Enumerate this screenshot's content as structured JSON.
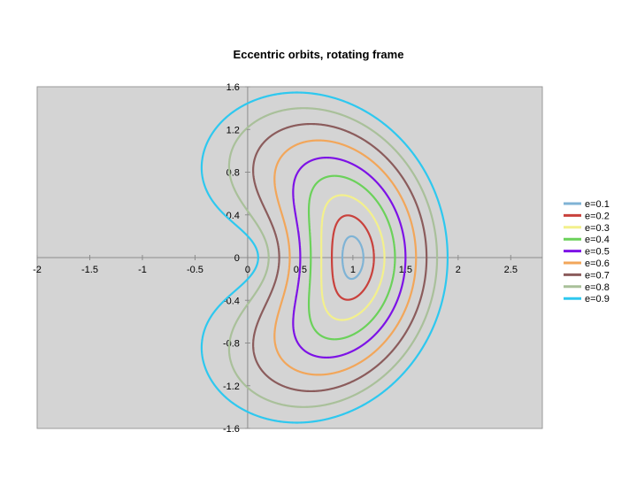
{
  "chart_data": {
    "type": "line",
    "title": "Eccentric orbits, rotating frame",
    "xlabel": "",
    "ylabel": "",
    "xlim": [
      -2,
      2.8
    ],
    "ylim": [
      -1.6,
      1.6
    ],
    "x_ticks": [
      "-2",
      "-1.5",
      "-1",
      "-0.5",
      "0",
      "0.5",
      "1",
      "1.5",
      "2",
      "2.5"
    ],
    "y_ticks": [
      "1.6",
      "1.2",
      "0.8",
      "0.4",
      "0",
      "-0.4",
      "-0.8",
      "-1.2",
      "-1.6"
    ],
    "grid": false,
    "plot_background": "#d4d4d4",
    "legend_position": "right",
    "series": [
      {
        "name": "e=0.1",
        "e": 0.1,
        "color": "#7fb3d5"
      },
      {
        "name": "e=0.2",
        "e": 0.2,
        "color": "#c9413c"
      },
      {
        "name": "e=0.3",
        "e": 0.3,
        "color": "#f3f08c"
      },
      {
        "name": "e=0.4",
        "e": 0.4,
        "color": "#6bd15a"
      },
      {
        "name": "e=0.5",
        "e": 0.5,
        "color": "#7d12e6"
      },
      {
        "name": "e=0.6",
        "e": 0.6,
        "color": "#f2a65a"
      },
      {
        "name": "e=0.7",
        "e": 0.7,
        "color": "#8b5c5c"
      },
      {
        "name": "e=0.8",
        "e": 0.8,
        "color": "#a9c09a"
      },
      {
        "name": "e=0.9",
        "e": 0.9,
        "color": "#2ec8ef"
      }
    ]
  }
}
